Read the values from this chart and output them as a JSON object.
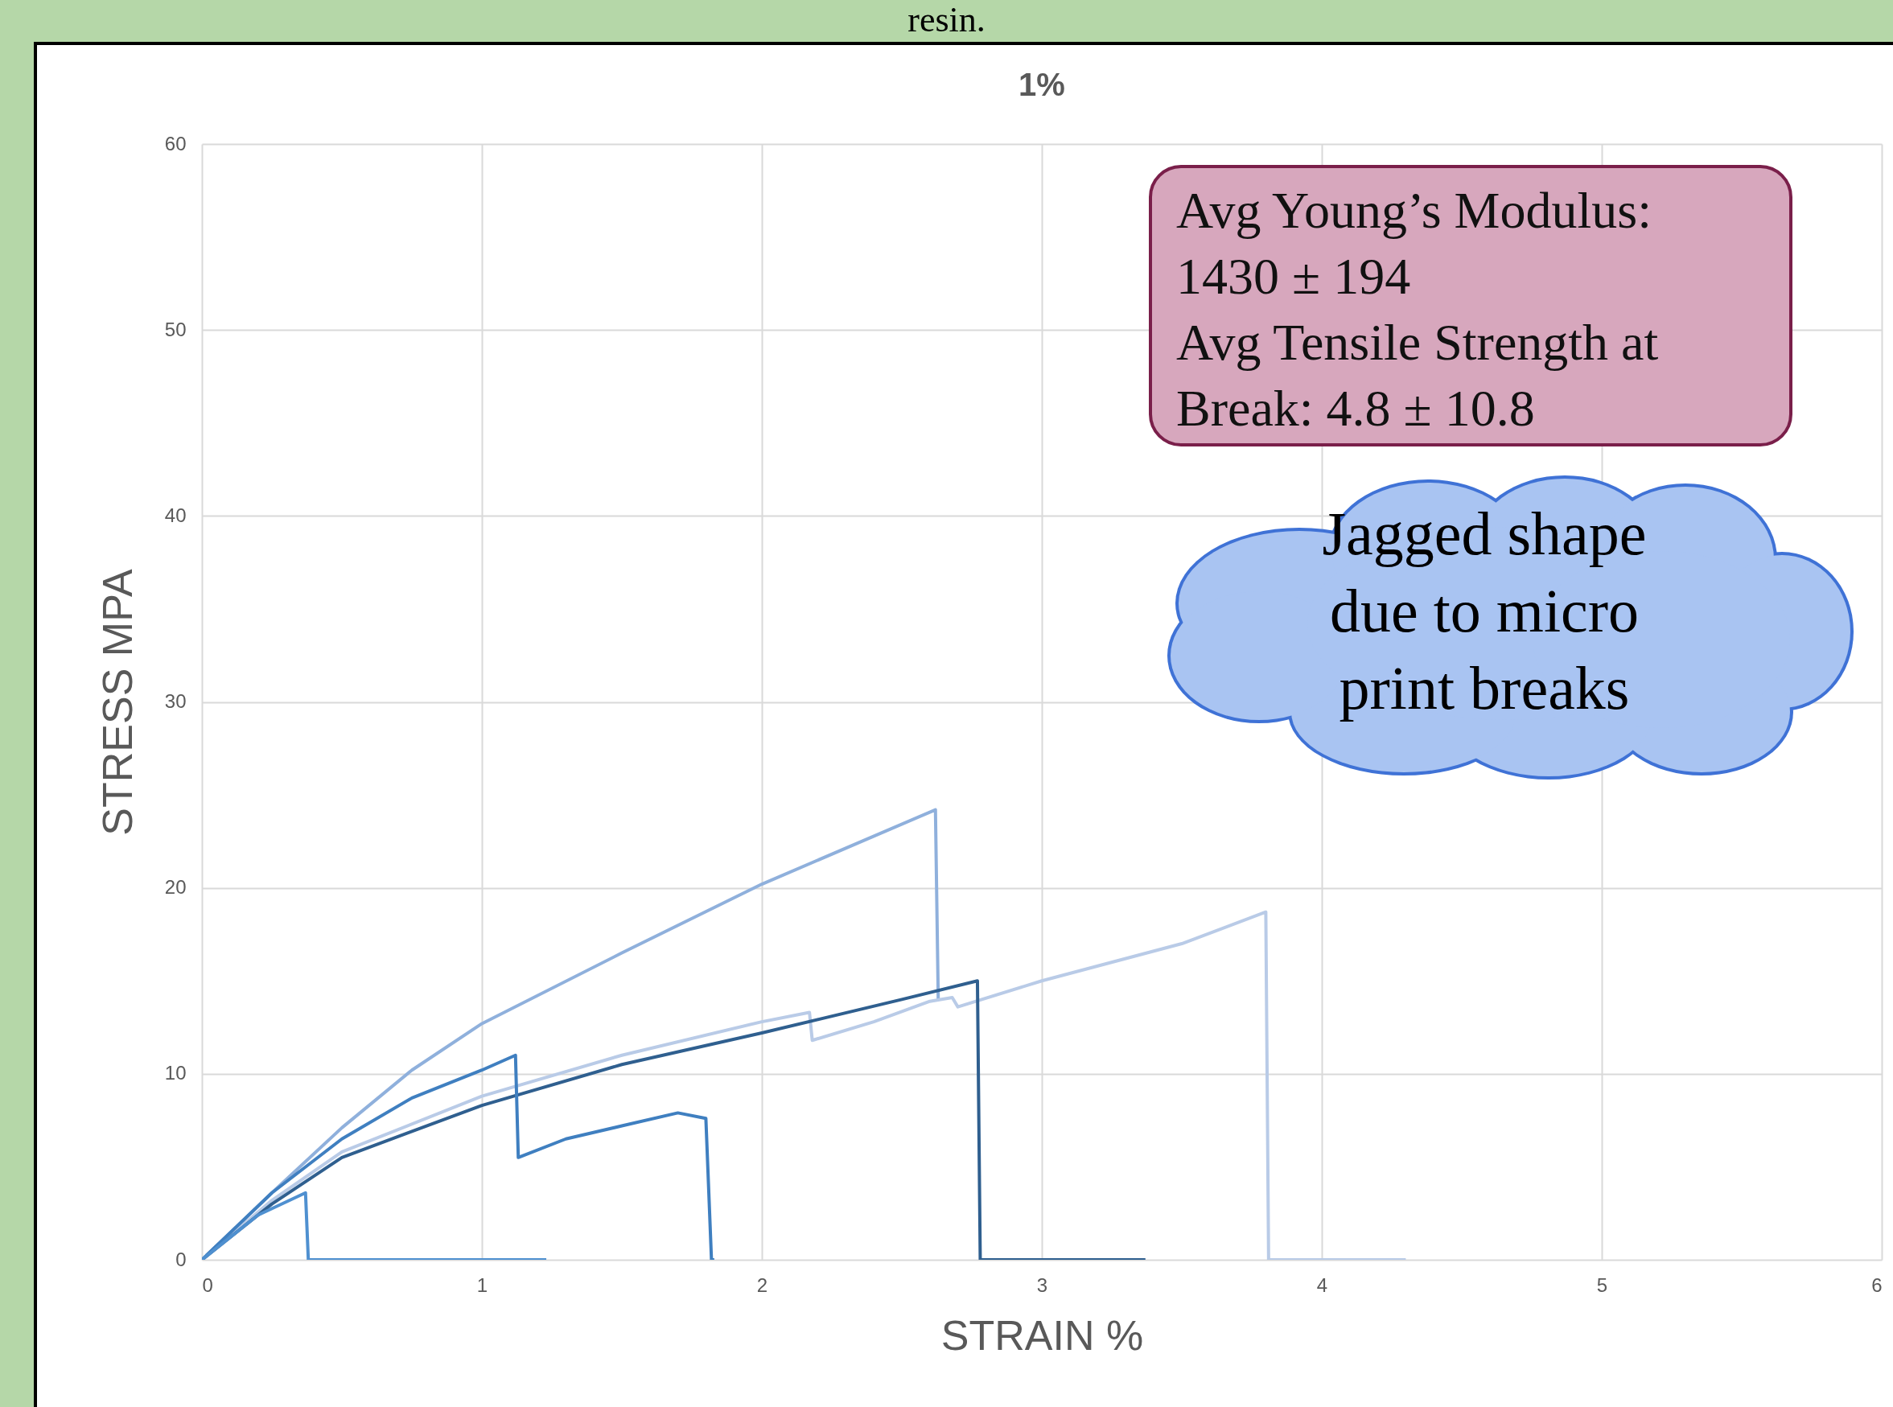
{
  "chart_data": {
    "type": "line",
    "title": "1%",
    "xlabel": "STRAIN %",
    "ylabel": "STRESS MPA",
    "xlim": [
      0,
      6
    ],
    "ylim": [
      0,
      60
    ],
    "xticks": [
      0,
      1,
      2,
      3,
      4,
      5,
      6
    ],
    "yticks": [
      0,
      10,
      20,
      30,
      40,
      50,
      60
    ],
    "grid": true,
    "marker": "none",
    "line_style": "solid",
    "annotations": [
      "resin.",
      "Avg Young’s Modulus:\n1430 ± 194\nAvg Tensile Strength at\nBreak: 4.8 ± 10.8",
      "Jagged shape\ndue to micro\nprint breaks"
    ],
    "series": [
      {
        "color": "#8fb0dc",
        "x": [
          0,
          0.25,
          0.5,
          0.75,
          1,
          1.5,
          2,
          2.62,
          2.63
        ],
        "values": [
          0,
          3.6,
          7.1,
          10.2,
          12.7,
          16.5,
          20.2,
          24.2,
          14
        ]
      },
      {
        "color": "#b9cbe7",
        "x": [
          0,
          0.25,
          0.5,
          1,
          1.5,
          2,
          2.17,
          2.18,
          2.4,
          2.6,
          2.68,
          2.7,
          3,
          3.5,
          3.8,
          3.81,
          4.3
        ],
        "values": [
          0,
          3.2,
          5.8,
          8.8,
          11,
          12.8,
          13.3,
          11.8,
          12.8,
          13.9,
          14.1,
          13.6,
          15,
          17,
          18.7,
          0,
          0
        ]
      },
      {
        "color": "#2f5f8f",
        "x": [
          0,
          0.25,
          0.5,
          1,
          1.5,
          2,
          2.5,
          2.77,
          2.78,
          3.37
        ],
        "values": [
          0,
          3,
          5.5,
          8.3,
          10.5,
          12.2,
          14,
          15,
          0,
          0
        ]
      },
      {
        "color": "#3f7fc0",
        "x": [
          0,
          0.25,
          0.5,
          0.75,
          1,
          1.12,
          1.13,
          1.3,
          1.5,
          1.7,
          1.8,
          1.82,
          1.83
        ],
        "values": [
          0,
          3.6,
          6.5,
          8.7,
          10.2,
          11,
          5.5,
          6.5,
          7.2,
          7.9,
          7.6,
          0,
          0
        ]
      },
      {
        "color": "#4f90d0",
        "x": [
          0,
          0.2,
          0.37,
          0.38,
          1.23
        ],
        "values": [
          0,
          2.4,
          3.6,
          0,
          0
        ]
      }
    ]
  }
}
